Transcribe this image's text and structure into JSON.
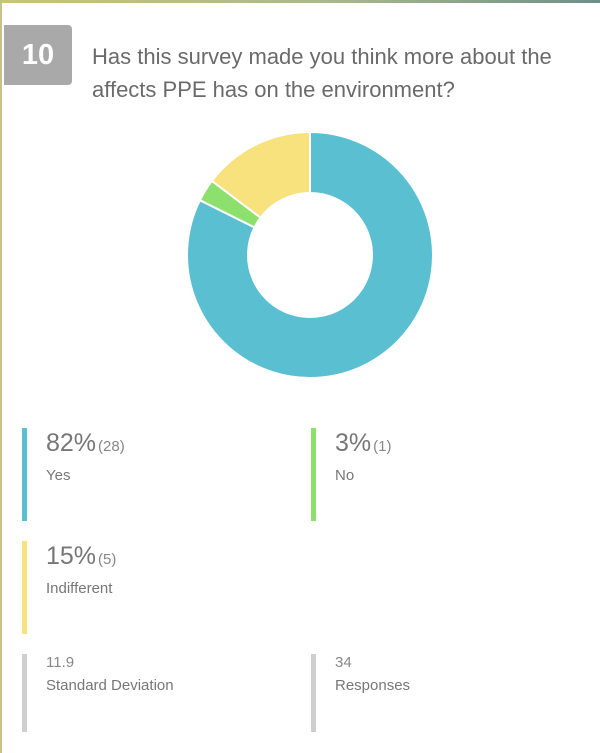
{
  "question": {
    "number": "10",
    "text": "Has this survey made you think more about the affects PPE has on the environment?"
  },
  "chart_data": {
    "type": "pie",
    "variant": "donut",
    "categories": [
      "Yes",
      "No",
      "Indifferent"
    ],
    "values": [
      28,
      1,
      5
    ],
    "percentages": [
      "82%",
      "3%",
      "15%"
    ],
    "counts": [
      "(28)",
      "(1)",
      "(5)"
    ],
    "colors": [
      "#5bbfd2",
      "#8ee06e",
      "#f8e27e"
    ]
  },
  "summary": {
    "std_dev_value": "11.9",
    "std_dev_label": "Standard Deviation",
    "responses_value": "34",
    "responses_label": "Responses"
  },
  "colors": {
    "meta_bar": "#cfcfcf",
    "question_badge": "#a9a9a9"
  }
}
